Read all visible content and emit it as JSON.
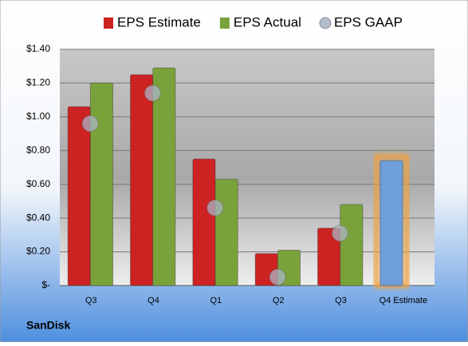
{
  "chart_data": {
    "type": "bar",
    "company": "SanDisk",
    "categories": [
      "Q3",
      "Q4",
      "Q1",
      "Q2",
      "Q3",
      "Q4 Estimate"
    ],
    "series": [
      {
        "name": "EPS Estimate",
        "color": "#cc2222",
        "highlight_color": "#6f9fd8",
        "values": [
          1.06,
          1.25,
          0.75,
          0.19,
          0.34,
          0.74
        ]
      },
      {
        "name": "EPS Actual",
        "color": "#7aa23a",
        "values": [
          1.2,
          1.29,
          0.63,
          0.21,
          0.48,
          null
        ]
      },
      {
        "name": "EPS GAAP",
        "color": "#a9b4c4",
        "marker": "circle",
        "values": [
          0.96,
          1.14,
          0.46,
          0.05,
          0.31,
          null
        ]
      }
    ],
    "ylim": [
      0,
      1.4
    ],
    "yticks": [
      {
        "value": 0,
        "label": "$-"
      },
      {
        "value": 0.2,
        "label": "$0.20"
      },
      {
        "value": 0.4,
        "label": "$0.40"
      },
      {
        "value": 0.6,
        "label": "$0.60"
      },
      {
        "value": 0.8,
        "label": "$0.80"
      },
      {
        "value": 1.0,
        "label": "$1.00"
      },
      {
        "value": 1.2,
        "label": "$1.20"
      },
      {
        "value": 1.4,
        "label": "$1.40"
      }
    ],
    "grid": true
  }
}
